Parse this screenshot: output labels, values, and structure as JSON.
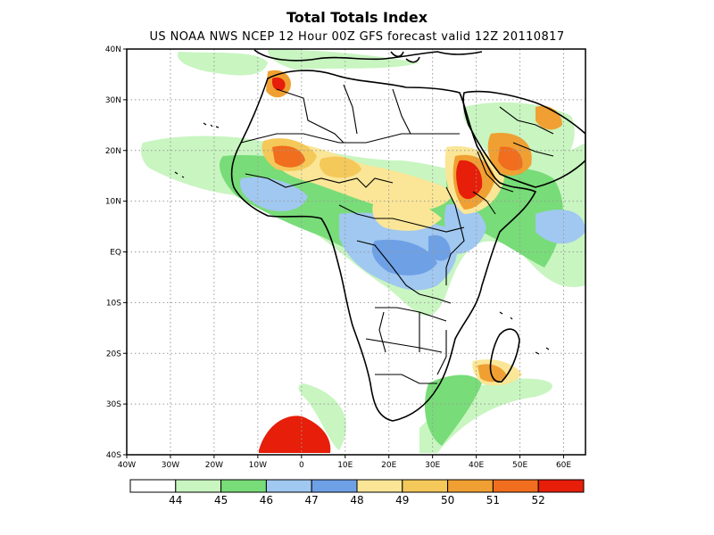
{
  "title": "Total Totals Index",
  "subtitle": "US NOAA NWS NCEP 12 Hour 00Z GFS forecast valid 12Z 20110817",
  "map": {
    "lon_range": [
      -40,
      65
    ],
    "lat_range": [
      -40,
      40
    ],
    "lon_ticks": [
      "40W",
      "30W",
      "20W",
      "10W",
      "0",
      "10E",
      "20E",
      "30E",
      "40E",
      "50E",
      "60E"
    ],
    "lat_ticks": [
      "40N",
      "30N",
      "20N",
      "10N",
      "EQ",
      "10S",
      "20S",
      "30S",
      "40S"
    ],
    "grid": true,
    "land_boundary_color": "#000000"
  },
  "legend": {
    "colors": [
      "#ffffff",
      "#c8f5c0",
      "#78dc78",
      "#a0c8f0",
      "#6ea0e6",
      "#fae696",
      "#f5c85a",
      "#f0a032",
      "#f06e1e",
      "#e61e0a"
    ],
    "labels": [
      "44",
      "45",
      "46",
      "47",
      "48",
      "49",
      "50",
      "51",
      "52"
    ]
  },
  "shading": {
    "green_light": "#c8f5c0",
    "green": "#78dc78",
    "blue_light": "#a0c8f0",
    "blue": "#6ea0e6",
    "yellow": "#fae696",
    "orange_light": "#f5c85a",
    "orange": "#f0a032",
    "orange_dark": "#f06e1e",
    "red": "#e61e0a"
  }
}
